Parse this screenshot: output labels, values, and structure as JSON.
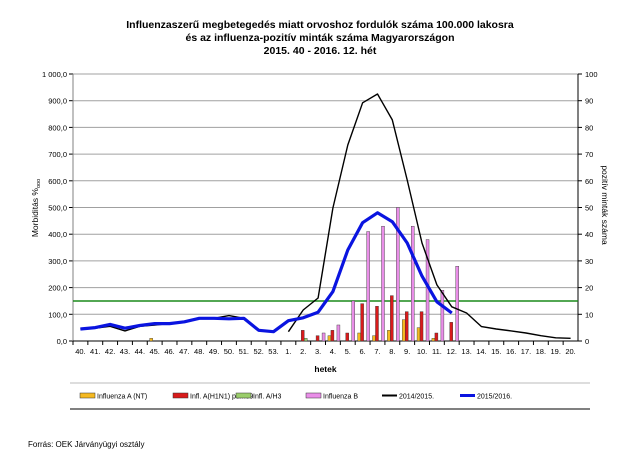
{
  "chart_data": {
    "type": "bar+line",
    "title": [
      "Influenzaszerű megbetegedés miatt orvoshoz fordulók száma 100.000 lakosra",
      "és az influenza-pozitív minták száma Magyarországon",
      "2015. 40 - 2016. 12. hét"
    ],
    "xlabel": "hetek",
    "ylabel": "Morbiditás %ooo",
    "ylabel_sub": "0000",
    "ylabel_main": "Morbiditás %",
    "y2label": "pozitív minták száma",
    "ylim": [
      0,
      1000
    ],
    "y2lim": [
      0,
      100
    ],
    "yticks": [
      "0,0",
      "100,0",
      "200,0",
      "300,0",
      "400,0",
      "500,0",
      "600,0",
      "700,0",
      "800,0",
      "900,0",
      "1 000,0"
    ],
    "y2ticks": [
      "0",
      "10",
      "20",
      "30",
      "40",
      "50",
      "60",
      "70",
      "80",
      "90",
      "100"
    ],
    "categories": [
      "40.",
      "41.",
      "42.",
      "43.",
      "44.",
      "45.",
      "46.",
      "47.",
      "48.",
      "49.",
      "50.",
      "51.",
      "52.",
      "53.",
      "1.",
      "2.",
      "3.",
      "4.",
      "5.",
      "6.",
      "7.",
      "8.",
      "9.",
      "10.",
      "11.",
      "12.",
      "13.",
      "14.",
      "15.",
      "16.",
      "17.",
      "18.",
      "19.",
      "20."
    ],
    "bar_series": [
      {
        "name": "Influenza A (NT)",
        "color": "#f5b921",
        "values": [
          0,
          0,
          0,
          0,
          0,
          1,
          0,
          0,
          0,
          0,
          0,
          0,
          0,
          0,
          0,
          0,
          0,
          2,
          0,
          3,
          2,
          4,
          8,
          5,
          1,
          0,
          0,
          0,
          0,
          0,
          0,
          0,
          0,
          0
        ]
      },
      {
        "name": "Infl. A(H1N1) pdm09",
        "color": "#d81b1b",
        "values": [
          0,
          0,
          0,
          0,
          0,
          0,
          0,
          0,
          0,
          0,
          0,
          0,
          0,
          0,
          0,
          4,
          2,
          4,
          3,
          14,
          13,
          17,
          11,
          11,
          3,
          7,
          0,
          0,
          0,
          0,
          0,
          0,
          0,
          0
        ]
      },
      {
        "name": "Infl. A/H3",
        "color": "#9acd6a",
        "values": [
          0,
          0,
          0,
          0,
          0,
          0,
          0,
          0,
          0,
          0,
          0,
          0,
          0,
          0,
          0,
          1,
          0,
          0,
          0,
          0,
          0,
          0,
          0,
          0,
          0,
          0,
          0,
          0,
          0,
          0,
          0,
          0,
          0,
          0
        ]
      },
      {
        "name": "Influenza B",
        "color": "#e98ee8",
        "values": [
          0,
          0,
          0,
          0,
          0,
          0,
          0,
          0,
          0,
          0,
          0,
          0,
          0,
          0,
          0,
          0,
          3,
          6,
          15,
          41,
          43,
          50,
          43,
          38,
          19,
          28,
          0,
          0,
          0,
          0,
          0,
          0,
          0,
          0
        ]
      }
    ],
    "line_series": [
      {
        "name": "2014/2015.",
        "color": "#000000",
        "values": [
          45,
          48,
          55,
          38,
          55,
          60,
          65,
          72,
          83,
          85,
          95,
          85,
          null,
          null,
          35,
          116,
          161,
          498,
          734,
          892,
          925,
          828,
          603,
          367,
          210,
          128,
          105,
          54,
          45,
          38,
          30,
          20,
          12,
          10
        ]
      },
      {
        "name": "2015/2016.",
        "color": "#0a14e0",
        "values": [
          45,
          50,
          62,
          48,
          58,
          65,
          65,
          72,
          85,
          85,
          83,
          85,
          40,
          35,
          76,
          87,
          108,
          185,
          341,
          443,
          480,
          447,
          367,
          243,
          147,
          105,
          null,
          null,
          null,
          null,
          null,
          null,
          null,
          null
        ]
      }
    ],
    "threshold": {
      "value": 150,
      "color": "#1a8a1a"
    },
    "legend_position": "bottom",
    "grid": true
  },
  "source": "Forrás: OEK Járványügyi osztály"
}
